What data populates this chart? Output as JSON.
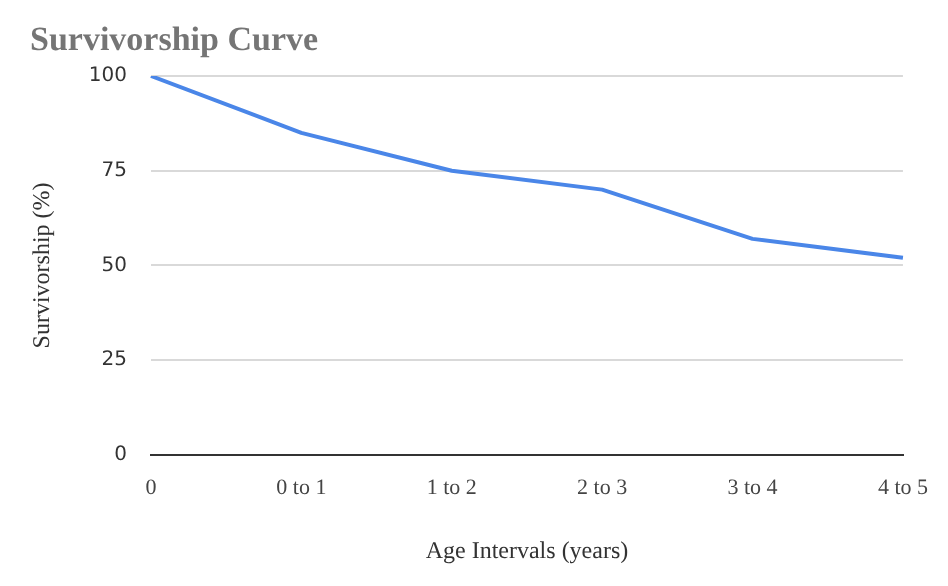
{
  "chart_data": {
    "type": "line",
    "title": "Survivorship Curve",
    "xlabel": "Age Intervals (years)",
    "ylabel": "Survivorship (%)",
    "categories": [
      "0",
      "0 to 1",
      "1 to 2",
      "2 to 3",
      "3 to 4",
      "4 to 5"
    ],
    "series": [
      {
        "color": "#4a86e8",
        "values": [
          100,
          85,
          75,
          70,
          57,
          52
        ]
      }
    ],
    "ylim": [
      0,
      100
    ],
    "yticks": [
      0,
      25,
      50,
      75,
      100
    ],
    "grid": "y",
    "legend": false,
    "marker": "none",
    "line_style": "solid"
  }
}
